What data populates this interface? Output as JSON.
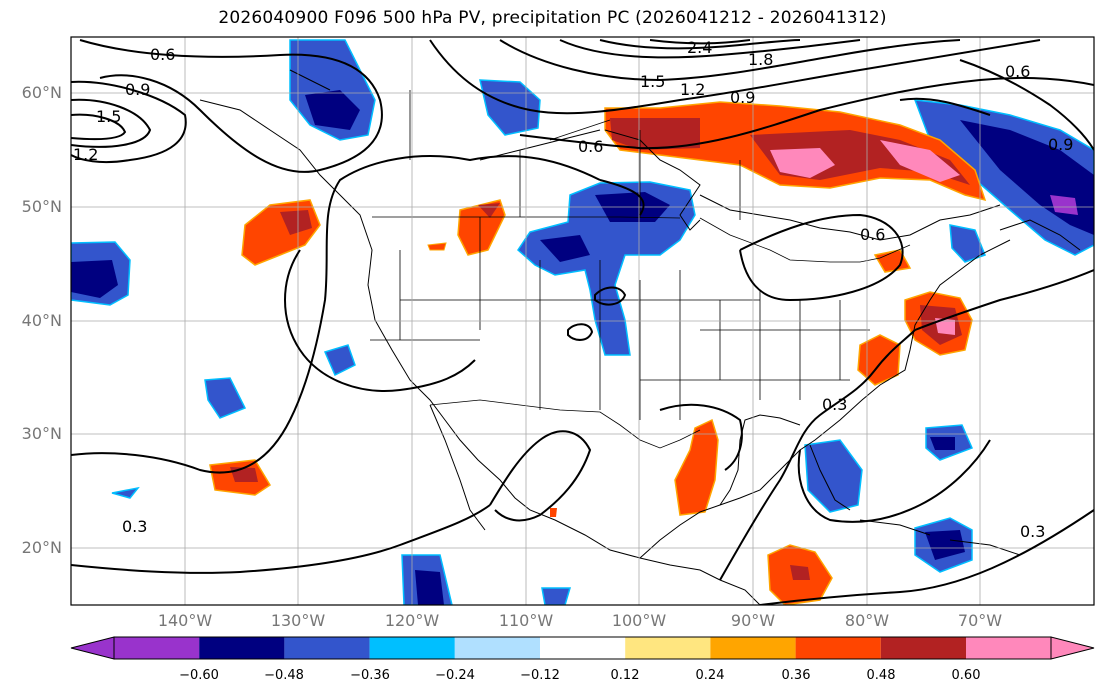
{
  "title": "2026040900 F096 500 hPa PV, precipitation PC (2026041212 - 2026041312)",
  "map": {
    "lat_labels": [
      "60°N",
      "50°N",
      "40°N",
      "30°N",
      "20°N"
    ],
    "lon_labels": [
      "140°W",
      "130°W",
      "120°W",
      "110°W",
      "100°W",
      "90°W",
      "80°W",
      "70°W"
    ],
    "contour_labels": [
      "0.6",
      "0.9",
      "1.5",
      "1.2",
      "2.4",
      "1.8",
      "1.5",
      "1.2",
      "0.9",
      "0.6",
      "0.6",
      "0.9",
      "0.6",
      "0.3",
      "0.3",
      "0.3"
    ]
  },
  "colorbar": {
    "tick_labels": [
      "−0.60",
      "−0.48",
      "−0.36",
      "−0.24",
      "−0.12",
      "0.12",
      "0.24",
      "0.36",
      "0.48",
      "0.60"
    ],
    "colors": [
      "#9933cc",
      "#000080",
      "#3355cc",
      "#00bfff",
      "#b0e0ff",
      "#ffffff",
      "#ffe680",
      "#ffa500",
      "#ff4500",
      "#b22222",
      "#ff88bb"
    ]
  }
}
